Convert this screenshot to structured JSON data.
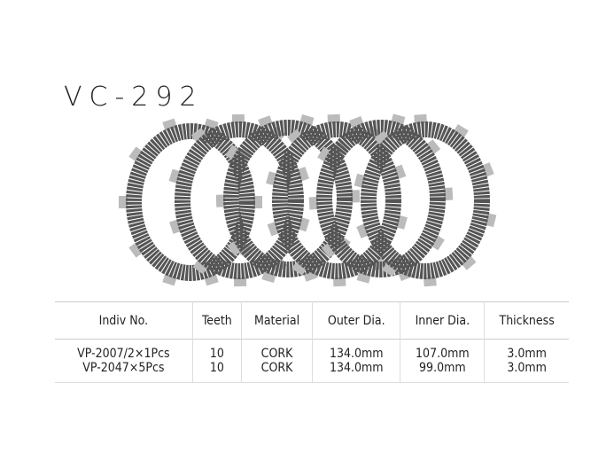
{
  "title": "VC-292",
  "table": {
    "headers": [
      "Indiv No.",
      "Teeth",
      "Material",
      "Outer Dia.",
      "Inner Dia.",
      "Thickness"
    ],
    "rows": [
      [
        "VP-2007/2×1Pcs",
        "10",
        "CORK",
        "134.0mm",
        "107.0mm",
        "3.0mm"
      ],
      [
        "VP-2047×5Pcs",
        "10",
        "CORK",
        "134.0mm",
        "99.0mm",
        "3.0mm"
      ]
    ]
  },
  "plate_count": 6,
  "colors": {
    "plate": "#555555",
    "tab": "#bbbbbb"
  }
}
